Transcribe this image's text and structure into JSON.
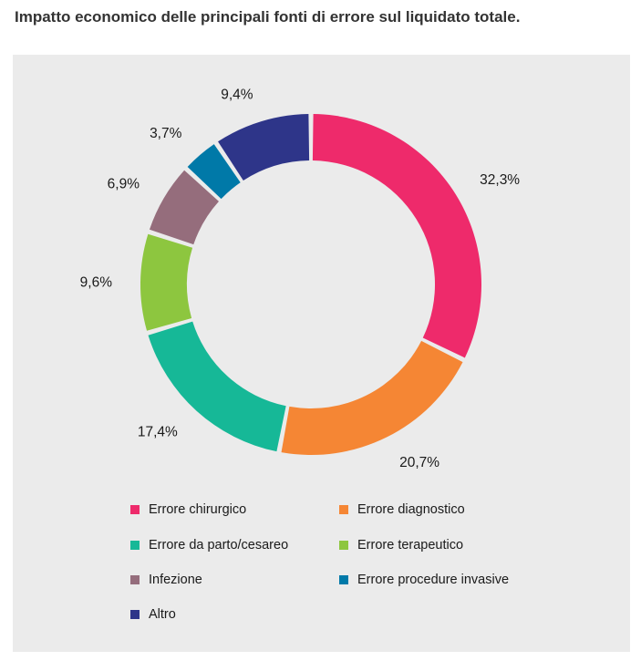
{
  "chart_data": {
    "type": "pie",
    "title": "Impatto economico delle principali fonti di errore sul liquidato totale.",
    "categories": [
      "Errore chirurgico",
      "Errore diagnostico",
      "Errore da parto/cesareo",
      "Errore terapeutico",
      "Infezione",
      "Errore procedure invasive",
      "Altro"
    ],
    "values": [
      32.3,
      20.7,
      17.4,
      9.6,
      6.9,
      3.7,
      9.4
    ],
    "value_labels": [
      "32,3%",
      "20,7%",
      "17,4%",
      "9,6%",
      "6,9%",
      "3,7%",
      "9,4%"
    ],
    "colors": [
      "#ee2a6b",
      "#f58634",
      "#16b897",
      "#8dc63f",
      "#956d7c",
      "#0079a8",
      "#2e3589"
    ],
    "legend_order": [
      0,
      1,
      2,
      3,
      4,
      5,
      6
    ],
    "legend_placement": "bottom"
  }
}
